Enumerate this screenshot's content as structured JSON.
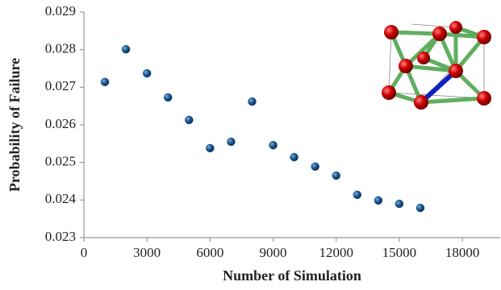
{
  "chart_data": {
    "type": "scatter",
    "x_label": "Number of Simulation",
    "y_label": "Probability of Failure",
    "x": [
      1000,
      2000,
      3000,
      4000,
      5000,
      6000,
      7000,
      8000,
      9000,
      10000,
      11000,
      12000,
      13000,
      14000,
      15000,
      16000
    ],
    "values": [
      0.02714,
      0.02801,
      0.02737,
      0.02673,
      0.02613,
      0.02538,
      0.02555,
      0.02662,
      0.02546,
      0.02514,
      0.02489,
      0.02465,
      0.02414,
      0.02399,
      0.0239,
      0.02379
    ],
    "color": "#1f5b94",
    "xlim": [
      0,
      19800
    ],
    "ylim": [
      0.023,
      0.029
    ],
    "xticks": [
      0,
      3000,
      6000,
      9000,
      12000,
      15000,
      18000
    ],
    "yticks": [
      0.023,
      0.024,
      0.025,
      0.026,
      0.027,
      0.028,
      0.029
    ]
  }
}
